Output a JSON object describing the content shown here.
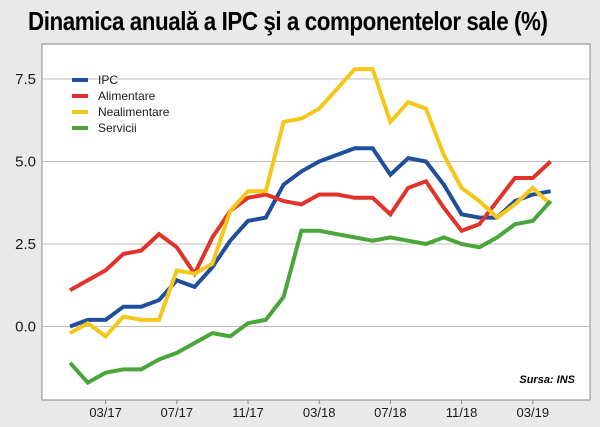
{
  "chart_data": {
    "type": "line",
    "title": "Dinamica anuală a IPC şi a componentelor sale (%)",
    "source": "Sursa: INS",
    "xlabel": "",
    "ylabel": "",
    "ylim": [
      -2,
      8.3
    ],
    "yticks": [
      0.0,
      2.5,
      5.0,
      7.5
    ],
    "ytick_labels": [
      "0.0",
      "2.5",
      "5.0",
      "7.5"
    ],
    "xtick_labels": [
      "03/17",
      "07/17",
      "11/17",
      "03/18",
      "07/18",
      "11/18",
      "03/19"
    ],
    "xtick_index": [
      2,
      6,
      10,
      14,
      18,
      22,
      26
    ],
    "x": [
      "01/17",
      "02/17",
      "03/17",
      "04/17",
      "05/17",
      "06/17",
      "07/17",
      "08/17",
      "09/17",
      "10/17",
      "11/17",
      "12/17",
      "01/18",
      "02/18",
      "03/18",
      "04/18",
      "05/18",
      "06/18",
      "07/18",
      "08/18",
      "09/18",
      "10/18",
      "11/18",
      "12/18",
      "01/19",
      "02/19",
      "03/19",
      "04/19"
    ],
    "legend_position": "top-left",
    "series": [
      {
        "name": "IPC",
        "color": "#1f4e9c",
        "values": [
          0.0,
          0.2,
          0.2,
          0.6,
          0.6,
          0.8,
          1.4,
          1.2,
          1.8,
          2.6,
          3.2,
          3.3,
          4.3,
          4.7,
          5.0,
          5.2,
          5.4,
          5.4,
          4.6,
          5.1,
          5.0,
          4.3,
          3.4,
          3.3,
          3.3,
          3.8,
          4.0,
          4.1
        ]
      },
      {
        "name": "Alimentare",
        "color": "#e0342b",
        "values": [
          1.1,
          1.4,
          1.7,
          2.2,
          2.3,
          2.8,
          2.4,
          1.6,
          2.7,
          3.5,
          3.9,
          4.0,
          3.8,
          3.7,
          4.0,
          4.0,
          3.9,
          3.9,
          3.4,
          4.2,
          4.4,
          3.6,
          2.9,
          3.1,
          3.8,
          4.5,
          4.5,
          5.0
        ]
      },
      {
        "name": "Nealimentare",
        "color": "#f5c71a",
        "values": [
          -0.2,
          0.1,
          -0.3,
          0.3,
          0.2,
          0.2,
          1.7,
          1.6,
          1.9,
          3.5,
          4.1,
          4.1,
          6.2,
          6.3,
          6.6,
          7.2,
          7.8,
          7.8,
          6.2,
          6.8,
          6.6,
          5.2,
          4.2,
          3.8,
          3.3,
          3.7,
          4.2,
          3.7
        ]
      },
      {
        "name": "Servicii",
        "color": "#4aa63a",
        "values": [
          -1.1,
          -1.7,
          -1.4,
          -1.3,
          -1.3,
          -1.0,
          -0.8,
          -0.5,
          -0.2,
          -0.3,
          0.1,
          0.2,
          0.9,
          2.9,
          2.9,
          2.8,
          2.7,
          2.6,
          2.7,
          2.6,
          2.5,
          2.7,
          2.5,
          2.4,
          2.7,
          3.1,
          3.2,
          3.8
        ]
      }
    ]
  }
}
